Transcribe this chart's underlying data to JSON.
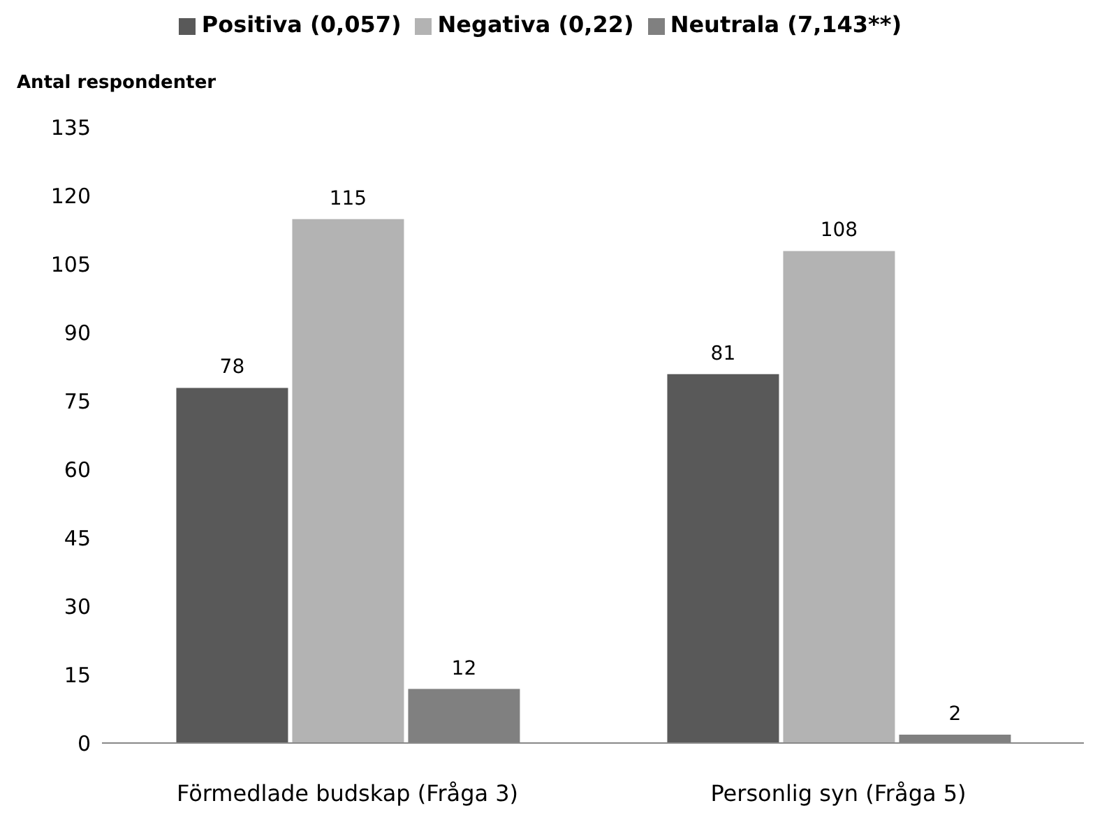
{
  "chart_data": {
    "type": "bar",
    "ylabel": "Antal respondenter",
    "categories": [
      "Förmedlade budskap (Fråga 3)",
      "Personlig syn (Fråga 5)"
    ],
    "series": [
      {
        "name": "Positiva (0,057)",
        "color": "#595959",
        "values": [
          78,
          81
        ]
      },
      {
        "name": "Negativa (0,22)",
        "color": "#b3b3b3",
        "values": [
          115,
          108
        ]
      },
      {
        "name": "Neutrala (7,143**)",
        "color": "#808080",
        "values": [
          12,
          2
        ]
      }
    ],
    "ylim": [
      0,
      135
    ],
    "yticks": [
      0,
      15,
      30,
      45,
      60,
      75,
      90,
      105,
      120,
      135
    ],
    "grid": false,
    "legend": "top",
    "data_labels": true
  }
}
